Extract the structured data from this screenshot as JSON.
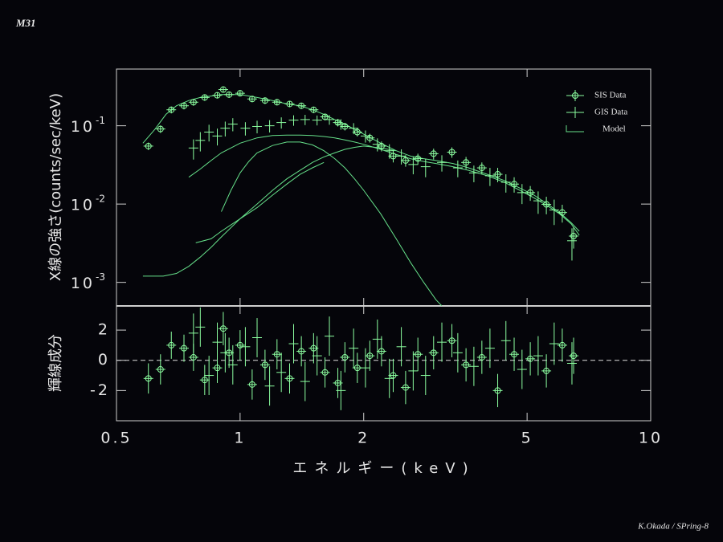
{
  "title": "M31",
  "credit": "K.Okada / SPring-8",
  "chart_data": [
    {
      "type": "errorbar",
      "log_x": true,
      "log_y": true,
      "legend": "upper right",
      "ylabel": "X線の強さ(counts/sec/keV)",
      "xlim": [
        0.5,
        10
      ],
      "ylim": [
        0.0005,
        0.53
      ],
      "yticks": [
        {
          "value": 0.1,
          "label": "10",
          "exponent": "-1"
        },
        {
          "value": 0.01,
          "label": "10",
          "exponent": "-2"
        },
        {
          "value": 0.001,
          "label": "10",
          "exponent": "-3"
        }
      ],
      "series": [
        {
          "name": "SIS Data",
          "color": "#8cffa0",
          "marker": "circle",
          "x": [
            0.598,
            0.64,
            0.68,
            0.73,
            0.77,
            0.82,
            0.88,
            0.91,
            0.94,
            1.0,
            1.07,
            1.15,
            1.23,
            1.32,
            1.41,
            1.51,
            1.61,
            1.73,
            1.8,
            1.93,
            2.07,
            2.21,
            2.36,
            2.53,
            2.71,
            2.96,
            3.28,
            3.55,
            3.88,
            4.24,
            4.65,
            5.09,
            5.57,
            6.09,
            6.49
          ],
          "values": [
            0.055,
            0.091,
            0.16,
            0.18,
            0.2,
            0.23,
            0.245,
            0.29,
            0.25,
            0.26,
            0.22,
            0.21,
            0.2,
            0.19,
            0.18,
            0.16,
            0.13,
            0.11,
            0.098,
            0.083,
            0.07,
            0.055,
            0.041,
            0.036,
            0.038,
            0.044,
            0.046,
            0.034,
            0.029,
            0.024,
            0.018,
            0.014,
            0.0099,
            0.0078,
            0.0039
          ],
          "errors": [
            0.006,
            0.01,
            0.016,
            0.018,
            0.02,
            0.022,
            0.022,
            0.025,
            0.022,
            0.022,
            0.02,
            0.02,
            0.018,
            0.017,
            0.016,
            0.015,
            0.013,
            0.012,
            0.011,
            0.01,
            0.009,
            0.008,
            0.007,
            0.006,
            0.006,
            0.007,
            0.007,
            0.006,
            0.005,
            0.005,
            0.004,
            0.003,
            0.0025,
            0.002,
            0.0012
          ]
        },
        {
          "name": "GIS Data",
          "color": "#8cffa0",
          "marker": "cross",
          "x": [
            0.77,
            0.8,
            0.84,
            0.88,
            0.92,
            0.96,
            1.03,
            1.1,
            1.18,
            1.26,
            1.35,
            1.44,
            1.54,
            1.65,
            1.76,
            1.89,
            2.02,
            2.16,
            2.31,
            2.47,
            2.64,
            2.83,
            3.1,
            3.39,
            3.71,
            4.06,
            4.44,
            4.86,
            5.32,
            5.82,
            6.43
          ],
          "values": [
            0.052,
            0.065,
            0.083,
            0.074,
            0.093,
            0.105,
            0.093,
            0.098,
            0.1,
            0.11,
            0.118,
            0.12,
            0.118,
            0.12,
            0.105,
            0.093,
            0.074,
            0.058,
            0.048,
            0.041,
            0.032,
            0.03,
            0.034,
            0.029,
            0.025,
            0.023,
            0.019,
            0.014,
            0.011,
            0.0084,
            0.0034
          ],
          "errors": [
            0.015,
            0.018,
            0.02,
            0.018,
            0.02,
            0.02,
            0.018,
            0.018,
            0.018,
            0.018,
            0.018,
            0.018,
            0.017,
            0.017,
            0.016,
            0.015,
            0.013,
            0.011,
            0.01,
            0.009,
            0.008,
            0.008,
            0.008,
            0.007,
            0.006,
            0.006,
            0.005,
            0.004,
            0.0035,
            0.003,
            0.0015
          ]
        }
      ],
      "model": {
        "name": "Model",
        "color": "#66e08a",
        "lines": [
          {
            "x": [
              0.58,
              0.62,
              0.66,
              0.7,
              0.75,
              0.8,
              0.85,
              0.9,
              1.0,
              1.1,
              1.2,
              1.3,
              1.4,
              1.5,
              1.6,
              1.7,
              1.8,
              1.9,
              2.0,
              2.2,
              2.4,
              2.6,
              2.8,
              3.0,
              3.3,
              3.6,
              4.0,
              4.4,
              4.8,
              5.2,
              5.6,
              6.0,
              6.4,
              6.7
            ],
            "values": [
              0.06,
              0.09,
              0.14,
              0.18,
              0.21,
              0.23,
              0.24,
              0.25,
              0.25,
              0.23,
              0.21,
              0.19,
              0.18,
              0.16,
              0.14,
              0.12,
              0.105,
              0.09,
              0.078,
              0.06,
              0.048,
              0.041,
              0.038,
              0.036,
              0.033,
              0.029,
              0.024,
              0.02,
              0.016,
              0.013,
              0.01,
              0.0078,
              0.0058,
              0.0045
            ]
          },
          {
            "x": [
              0.75,
              0.8,
              0.85,
              0.9,
              1.0,
              1.1,
              1.2,
              1.3,
              1.4,
              1.5,
              1.6,
              1.7,
              1.8,
              1.9,
              2.0,
              2.2,
              2.4,
              2.6,
              2.8,
              3.0,
              3.3,
              3.6,
              4.0,
              4.4,
              4.8,
              5.2,
              5.6,
              6.0,
              6.4,
              6.7
            ],
            "values": [
              0.022,
              0.028,
              0.036,
              0.045,
              0.06,
              0.07,
              0.075,
              0.076,
              0.076,
              0.075,
              0.073,
              0.07,
              0.066,
              0.062,
              0.058,
              0.05,
              0.043,
              0.038,
              0.035,
              0.033,
              0.03,
              0.027,
              0.023,
              0.019,
              0.015,
              0.012,
              0.0095,
              0.0075,
              0.0056,
              0.004
            ]
          },
          {
            "x": [
              0.9,
              0.95,
              1.0,
              1.05,
              1.1,
              1.2,
              1.3,
              1.4,
              1.5,
              1.6,
              1.7,
              1.8,
              1.9,
              2.0,
              2.2,
              2.4,
              2.6,
              2.8,
              3.0,
              3.1
            ],
            "values": [
              0.008,
              0.015,
              0.025,
              0.035,
              0.045,
              0.056,
              0.062,
              0.062,
              0.057,
              0.048,
              0.038,
              0.029,
              0.021,
              0.015,
              0.0075,
              0.0036,
              0.0018,
              0.001,
              0.0006,
              0.0005
            ]
          },
          {
            "x": [
              0.58,
              0.65,
              0.7,
              0.75,
              0.8,
              0.85,
              0.9,
              1.0,
              1.1,
              1.2,
              1.3,
              1.4,
              1.5,
              1.6,
              1.7,
              1.8,
              1.9,
              2.0,
              2.2,
              2.4
            ],
            "values": [
              0.0012,
              0.0012,
              0.0013,
              0.0016,
              0.0021,
              0.0028,
              0.0038,
              0.0065,
              0.01,
              0.015,
              0.021,
              0.027,
              0.034,
              0.04,
              0.045,
              0.05,
              0.053,
              0.055,
              0.052,
              0.048
            ]
          },
          {
            "x": [
              0.78,
              0.85,
              0.9,
              1.0,
              1.1,
              1.2,
              1.3,
              1.4,
              1.5,
              1.6
            ],
            "values": [
              0.0032,
              0.0036,
              0.0045,
              0.0065,
              0.009,
              0.013,
              0.018,
              0.024,
              0.029,
              0.034
            ]
          }
        ]
      }
    },
    {
      "type": "errorbar",
      "log_x": true,
      "ylabel": "輝線成分",
      "xlabel": "エネルギー(keV)",
      "xlim": [
        0.5,
        10
      ],
      "ylim": [
        -4,
        3.6
      ],
      "xticks": [
        0.5,
        1,
        2,
        5,
        10
      ],
      "yticks": [
        -2,
        0,
        2
      ],
      "series": [
        {
          "color": "#8cffa0",
          "marker": "circle",
          "x": [
            0.598,
            0.64,
            0.68,
            0.73,
            0.77,
            0.82,
            0.88,
            0.91,
            0.94,
            1.0,
            1.07,
            1.15,
            1.23,
            1.32,
            1.41,
            1.51,
            1.61,
            1.73,
            1.8,
            1.93,
            2.07,
            2.21,
            2.36,
            2.53,
            2.71,
            2.96,
            3.28,
            3.55,
            3.88,
            4.24,
            4.65,
            5.09,
            5.57,
            6.09,
            6.49
          ],
          "values": [
            -1.2,
            -0.6,
            1.0,
            0.8,
            0.2,
            -1.3,
            -0.5,
            2.1,
            0.5,
            1.0,
            -1.6,
            -0.3,
            0.4,
            -1.2,
            0.6,
            0.8,
            -0.8,
            -1.5,
            0.2,
            -0.5,
            0.3,
            0.6,
            -1.0,
            -1.8,
            0.4,
            0.5,
            1.3,
            -0.3,
            0.2,
            -2.0,
            0.4,
            0.1,
            -0.7,
            1.0,
            0.3
          ],
          "errors": [
            1.0,
            1.0,
            0.9,
            0.9,
            0.9,
            1.0,
            1.0,
            1.1,
            1.0,
            1.0,
            1.0,
            1.0,
            1.0,
            1.0,
            1.0,
            1.0,
            1.0,
            1.0,
            1.0,
            1.0,
            1.0,
            1.0,
            1.1,
            1.1,
            1.1,
            1.1,
            1.1,
            1.1,
            1.1,
            1.1,
            1.1,
            1.1,
            1.1,
            1.1,
            1.2
          ]
        },
        {
          "color": "#8cffa0",
          "marker": "cross",
          "x": [
            0.77,
            0.8,
            0.84,
            0.88,
            0.92,
            0.96,
            1.03,
            1.1,
            1.18,
            1.26,
            1.35,
            1.44,
            1.54,
            1.65,
            1.76,
            1.89,
            2.02,
            2.16,
            2.31,
            2.47,
            2.64,
            2.83,
            3.1,
            3.39,
            3.71,
            4.06,
            4.44,
            4.86,
            5.32,
            5.82,
            6.43
          ],
          "values": [
            1.8,
            2.2,
            -1.0,
            1.2,
            0.5,
            -0.3,
            0.9,
            1.5,
            -1.7,
            -0.8,
            1.1,
            -1.4,
            0.3,
            1.6,
            -2.0,
            0.8,
            -0.5,
            1.4,
            -1.2,
            0.9,
            -0.7,
            -1.0,
            1.2,
            0.5,
            -0.4,
            0.8,
            1.3,
            -0.6,
            0.3,
            1.1,
            -0.2
          ],
          "errors": [
            1.3,
            1.3,
            1.3,
            1.3,
            1.3,
            1.3,
            1.3,
            1.3,
            1.3,
            1.3,
            1.3,
            1.3,
            1.3,
            1.3,
            1.3,
            1.3,
            1.3,
            1.3,
            1.3,
            1.3,
            1.3,
            1.3,
            1.3,
            1.3,
            1.3,
            1.3,
            1.3,
            1.3,
            1.3,
            1.4,
            1.4
          ]
        }
      ]
    }
  ]
}
